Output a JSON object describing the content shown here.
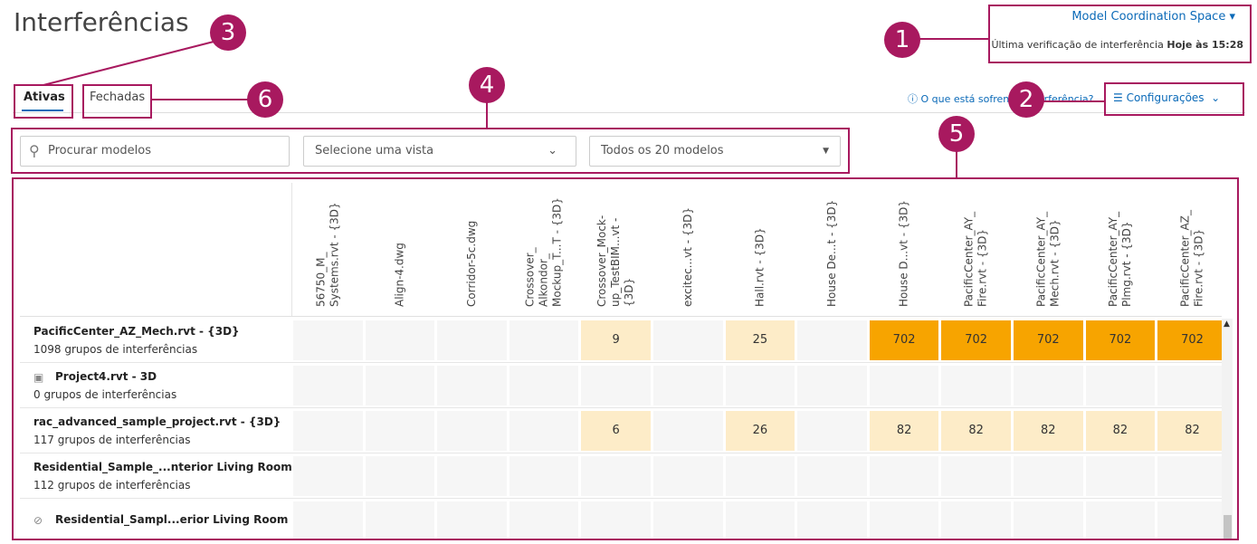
{
  "header": {
    "title": "Interferências",
    "space": "Model Coordination Space",
    "last_check_label": "Última verificação de interferência",
    "last_check_time": "Hoje às 15:28"
  },
  "tabs": [
    "Ativas",
    "Fechadas"
  ],
  "help_link": "O que está sofrendo interferência?",
  "settings": "Configurações",
  "filters": {
    "search": "Procurar modelos",
    "view": "Selecione uma vista",
    "models": "Todos os 20 modelos"
  },
  "table": {
    "columns": [
      [
        "56750_M_",
        "Systems.rvt - {3D}"
      ],
      [
        "Align-4.dwg"
      ],
      [
        "Corridor-5c.dwg"
      ],
      [
        "Crossover_",
        "Alkondor_",
        "Mockup_T...T - {3D}"
      ],
      [
        "Crossover_Mock-",
        "up_TestBIM...vt -",
        "{3D}"
      ],
      [
        "excitec...vt - {3D}"
      ],
      [
        "Hall.rvt - {3D}"
      ],
      [
        "House De...t - {3D}"
      ],
      [
        "House D...vt - {3D}"
      ],
      [
        "PacificCenter_AY_",
        "Fire.rvt - {3D}"
      ],
      [
        "PacificCenter_AY_",
        "Mech.rvt - {3D}"
      ],
      [
        "PacificCenter_AY_",
        "Plmg.rvt - {3D}"
      ],
      [
        "PacificCenter_AZ_",
        "Fire.rvt - {3D}"
      ]
    ],
    "rows": [
      {
        "name": "PacificCenter_AZ_Mech.rvt - {3D}",
        "subtitle": "1098 grupos de interferências",
        "cells": [
          null,
          null,
          null,
          null,
          9,
          null,
          25,
          null,
          702,
          702,
          702,
          702,
          702
        ],
        "cell_colors": [
          "#fdecc8",
          "#f7a400"
        ]
      },
      {
        "name": "Project4.rvt - 3D",
        "subtitle": "0 grupos de interferências",
        "icon": "model",
        "cells": [
          null,
          null,
          null,
          null,
          null,
          null,
          null,
          null,
          null,
          null,
          null,
          null,
          null
        ]
      },
      {
        "name": "rac_advanced_sample_project.rvt - {3D}",
        "subtitle": "117 grupos de interferências",
        "cells": [
          null,
          null,
          null,
          null,
          6,
          null,
          26,
          null,
          82,
          82,
          82,
          82,
          82
        ],
        "cell_colors": [
          "#fdecc8",
          "#fdecc8"
        ]
      },
      {
        "name": "Residential_Sample_...nterior Living Room",
        "subtitle": "112 grupos de interferências",
        "cells": [
          null,
          null,
          null,
          null,
          null,
          null,
          null,
          null,
          null,
          null,
          null,
          null,
          null
        ]
      },
      {
        "name": "Residential_Sampl...erior Living Room",
        "icon": "blocked",
        "cells": [
          null,
          null,
          null,
          null,
          null,
          null,
          null,
          null,
          null,
          null,
          null,
          null,
          null
        ]
      }
    ]
  },
  "callouts": [
    "1",
    "2",
    "3",
    "4",
    "5",
    "6"
  ]
}
